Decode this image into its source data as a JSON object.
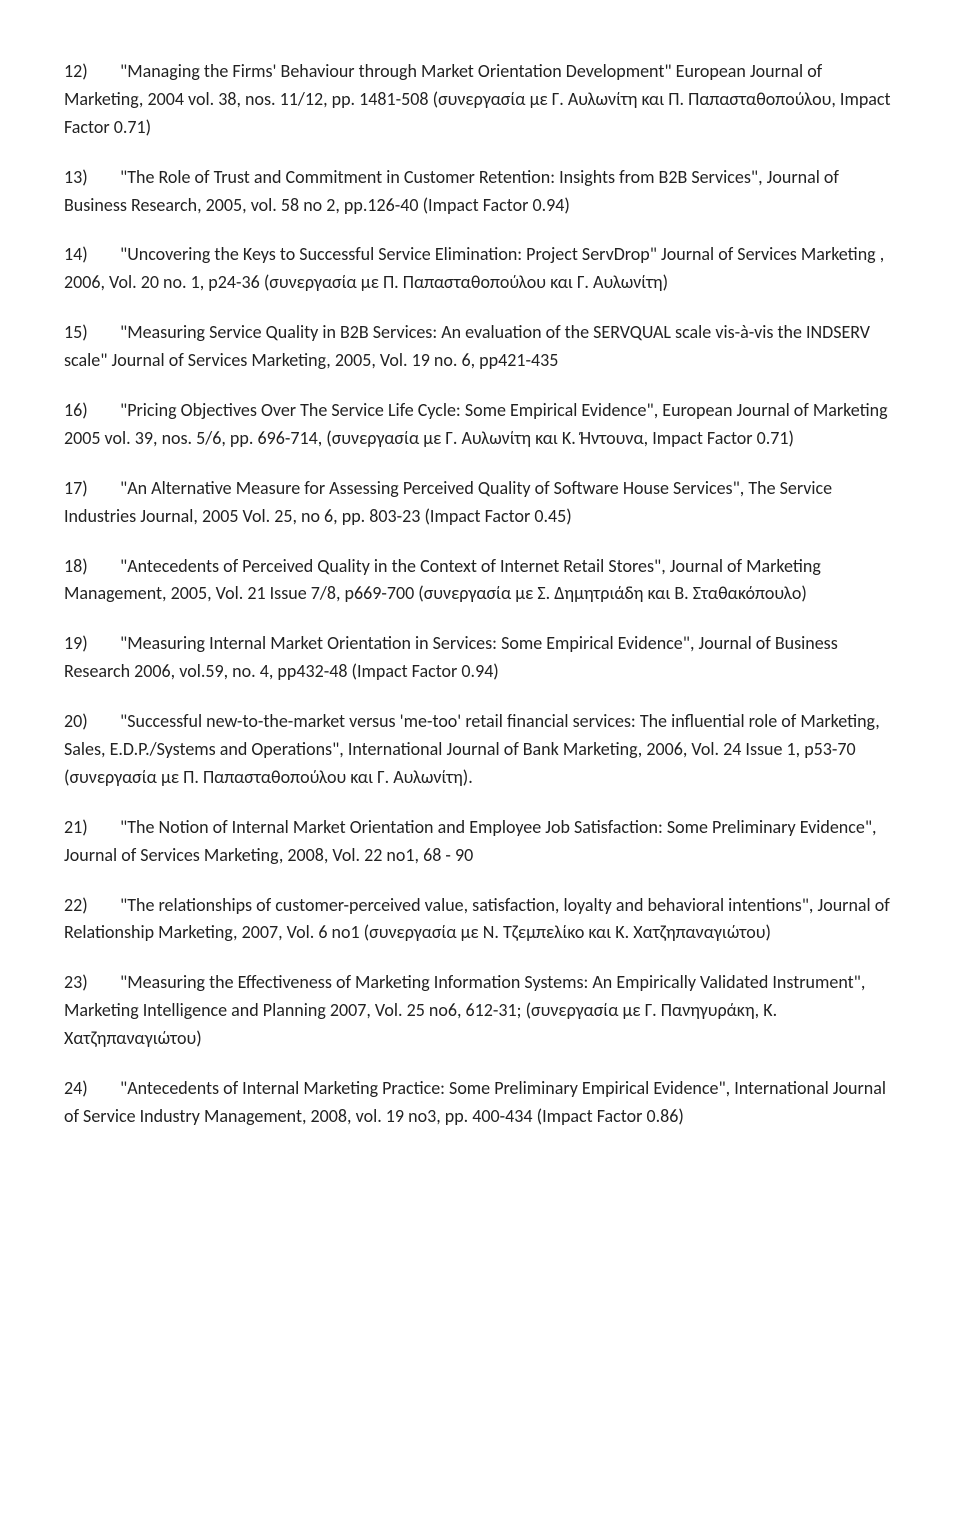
{
  "entries": [
    {
      "num": "12)",
      "text": "\"Managing the Firms' Behaviour through Market Orientation Development\" European Journal of Marketing, 2004 vol. 38, nos. 11/12, pp. 1481-508 (συνεργασία με Γ. Αυλωνίτη και Π. Παπασταθοπούλου, Impact Factor 0.71)"
    },
    {
      "num": "13)",
      "text": "\"The Role of Trust and Commitment in Customer Retention: Insights from B2B Services\", Journal of Business Research, 2005, vol. 58 no 2, pp.126-40 (Impact Factor 0.94)"
    },
    {
      "num": "14)",
      "text": "\"Uncovering the Keys to Successful Service Elimination: Project ServDrop\" Journal of Services Marketing , 2006, Vol. 20 no. 1, p24-36 (συνεργασία με Π. Παπασταθοπούλου και Γ. Αυλωνίτη)"
    },
    {
      "num": "15)",
      "text": "\"Measuring Service Quality in B2B Services: An evaluation of the SERVQUAL scale vis-à-vis the INDSERV scale\" Journal of Services Marketing, 2005, Vol. 19 no. 6, pp421-435"
    },
    {
      "num": "16)",
      "text": "\"Pricing Objectives Over The Service Life Cycle: Some Empirical Evidence\", European Journal of Marketing 2005 vol. 39, nos. 5/6, pp. 696-714, (συνεργασία με Γ. Αυλωνίτη και Κ. Ήντουνα, Impact Factor 0.71)"
    },
    {
      "num": "17)",
      "text": "\"An Alternative Measure for Assessing Perceived Quality of Software House Services\", The Service Industries Journal, 2005 Vol. 25, no 6, pp. 803-23 (Impact Factor 0.45)"
    },
    {
      "num": "18)",
      "text": "\"Antecedents of Perceived Quality in the Context of Internet Retail Stores\", Journal of Marketing Management, 2005, Vol. 21 Issue 7/8, p669-700 (συνεργασία με Σ. Δημητριάδη και Β. Σταθακόπουλο)"
    },
    {
      "num": "19)",
      "text": "\"Measuring Internal Market Orientation in Services: Some Empirical Evidence\", Journal of Business Research 2006, vol.59, no. 4, pp432-48 (Impact Factor 0.94)"
    },
    {
      "num": "20)",
      "text": "\"Successful new-to-the-market versus 'me-too' retail financial services: The influential role of Marketing, Sales, E.D.P./Systems and Operations\", International Journal of Bank Marketing, 2006, Vol. 24 Issue 1, p53-70 (συνεργασία με Π. Παπασταθοπούλου και Γ. Αυλωνίτη)."
    },
    {
      "num": "21)",
      "text": "\"The Notion of Internal Market Orientation and Employee Job Satisfaction: Some Preliminary Evidence\", Journal of Services Marketing, 2008, Vol. 22 no1, 68 - 90"
    },
    {
      "num": "22)",
      "text": "\"The relationships of customer-perceived value, satisfaction, loyalty and behavioral intentions\", Journal of Relationship Marketing, 2007, Vol. 6 no1 (συνεργασία με Ν. Τζεμπελίκο και Κ. Χατζηπαναγιώτου)"
    },
    {
      "num": "23)",
      "text": "\"Measuring the Effectiveness of Marketing Information Systems: An Empirically Validated Instrument\", Marketing Intelligence and Planning 2007, Vol. 25 no6, 612-31; (συνεργασία με Γ. Πανηγυράκη, Κ. Χατζηπαναγιώτου)"
    },
    {
      "num": "24)",
      "text": "\"Antecedents of Internal Marketing Practice: Some Preliminary Empirical Evidence\", International Journal of Service Industry Management, 2008, vol. 19 no3, pp. 400-434 (Impact Factor 0.86)"
    }
  ]
}
